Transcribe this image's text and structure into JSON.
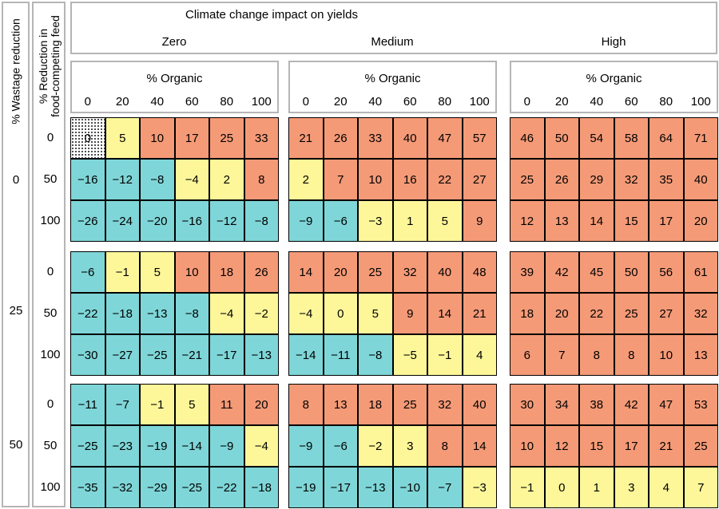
{
  "title": "Climate change impact on yields",
  "wastage_axis_label": "% Wastage reduction",
  "feed_axis_label_line1": "% Reduction in",
  "feed_axis_label_line2": "food-competing feed",
  "organic_label": "% Organic",
  "climate_levels": [
    "Zero",
    "Medium",
    "High"
  ],
  "organic_ticks": [
    "0",
    "20",
    "40",
    "60",
    "80",
    "100"
  ],
  "wastage_levels": [
    "0",
    "25",
    "50"
  ],
  "feed_levels": [
    "0",
    "50",
    "100"
  ],
  "colors": {
    "cyan": "#7fd6d8",
    "yellow": "#fdf79a",
    "orange": "#f59a77"
  },
  "chart_data": {
    "type": "heatmap",
    "title": "Climate change impact on yields",
    "x_label": "% Organic",
    "x": [
      0,
      20,
      40,
      60,
      80,
      100
    ],
    "rows_label": "% Reduction in food-competing feed",
    "row_levels": [
      0,
      50,
      100
    ],
    "outer_rows_label": "% Wastage reduction",
    "outer_row_levels": [
      0,
      25,
      50
    ],
    "columns": [
      "Zero",
      "Medium",
      "High"
    ],
    "values": {
      "0": {
        "Zero": [
          [
            0,
            5,
            10,
            17,
            25,
            33
          ],
          [
            -16,
            -12,
            -8,
            -4,
            2,
            8
          ],
          [
            -26,
            -24,
            -20,
            -16,
            -12,
            -8
          ]
        ],
        "Medium": [
          [
            21,
            26,
            33,
            40,
            47,
            57
          ],
          [
            2,
            7,
            10,
            16,
            22,
            27
          ],
          [
            -9,
            -6,
            -3,
            1,
            5,
            9
          ]
        ],
        "High": [
          [
            46,
            50,
            54,
            58,
            64,
            71
          ],
          [
            25,
            26,
            29,
            32,
            35,
            40
          ],
          [
            12,
            13,
            14,
            15,
            17,
            20
          ]
        ]
      },
      "25": {
        "Zero": [
          [
            -6,
            -1,
            5,
            10,
            18,
            26
          ],
          [
            -22,
            -18,
            -13,
            -8,
            -4,
            -2
          ],
          [
            -30,
            -27,
            -25,
            -21,
            -17,
            -13
          ]
        ],
        "Medium": [
          [
            14,
            20,
            25,
            32,
            40,
            48
          ],
          [
            -4,
            0,
            5,
            9,
            14,
            21
          ],
          [
            -14,
            -11,
            -8,
            -5,
            -1,
            4
          ]
        ],
        "High": [
          [
            39,
            42,
            45,
            50,
            56,
            61
          ],
          [
            18,
            20,
            22,
            25,
            27,
            32
          ],
          [
            6,
            7,
            8,
            8,
            10,
            13
          ]
        ]
      },
      "50": {
        "Zero": [
          [
            -11,
            -7,
            -1,
            5,
            11,
            20
          ],
          [
            -25,
            -23,
            -19,
            -14,
            -9,
            -4
          ],
          [
            -35,
            -32,
            -29,
            -25,
            -22,
            -18
          ]
        ],
        "Medium": [
          [
            8,
            13,
            18,
            25,
            32,
            40
          ],
          [
            -9,
            -6,
            -2,
            3,
            8,
            14
          ],
          [
            -19,
            -17,
            -13,
            -10,
            -7,
            -3
          ]
        ],
        "High": [
          [
            30,
            34,
            38,
            42,
            47,
            53
          ],
          [
            10,
            12,
            15,
            17,
            21,
            25
          ],
          [
            -1,
            0,
            1,
            3,
            4,
            7
          ]
        ]
      }
    },
    "color_classes": {
      "0": {
        "Zero": [
          [
            "dotted",
            "yellow",
            "orange",
            "orange",
            "orange",
            "orange"
          ],
          [
            "cyan",
            "cyan",
            "cyan",
            "yellow",
            "yellow",
            "orange"
          ],
          [
            "cyan",
            "cyan",
            "cyan",
            "cyan",
            "cyan",
            "cyan"
          ]
        ],
        "Medium": [
          [
            "orange",
            "orange",
            "orange",
            "orange",
            "orange",
            "orange"
          ],
          [
            "yellow",
            "orange",
            "orange",
            "orange",
            "orange",
            "orange"
          ],
          [
            "cyan",
            "cyan",
            "yellow",
            "yellow",
            "yellow",
            "orange"
          ]
        ],
        "High": [
          [
            "orange",
            "orange",
            "orange",
            "orange",
            "orange",
            "orange"
          ],
          [
            "orange",
            "orange",
            "orange",
            "orange",
            "orange",
            "orange"
          ],
          [
            "orange",
            "orange",
            "orange",
            "orange",
            "orange",
            "orange"
          ]
        ]
      },
      "25": {
        "Zero": [
          [
            "cyan",
            "yellow",
            "yellow",
            "orange",
            "orange",
            "orange"
          ],
          [
            "cyan",
            "cyan",
            "cyan",
            "cyan",
            "yellow",
            "yellow"
          ],
          [
            "cyan",
            "cyan",
            "cyan",
            "cyan",
            "cyan",
            "cyan"
          ]
        ],
        "Medium": [
          [
            "orange",
            "orange",
            "orange",
            "orange",
            "orange",
            "orange"
          ],
          [
            "yellow",
            "yellow",
            "yellow",
            "orange",
            "orange",
            "orange"
          ],
          [
            "cyan",
            "cyan",
            "cyan",
            "yellow",
            "yellow",
            "yellow"
          ]
        ],
        "High": [
          [
            "orange",
            "orange",
            "orange",
            "orange",
            "orange",
            "orange"
          ],
          [
            "orange",
            "orange",
            "orange",
            "orange",
            "orange",
            "orange"
          ],
          [
            "orange",
            "orange",
            "orange",
            "orange",
            "orange",
            "orange"
          ]
        ]
      },
      "50": {
        "Zero": [
          [
            "cyan",
            "cyan",
            "yellow",
            "yellow",
            "orange",
            "orange"
          ],
          [
            "cyan",
            "cyan",
            "cyan",
            "cyan",
            "cyan",
            "yellow"
          ],
          [
            "cyan",
            "cyan",
            "cyan",
            "cyan",
            "cyan",
            "cyan"
          ]
        ],
        "Medium": [
          [
            "orange",
            "orange",
            "orange",
            "orange",
            "orange",
            "orange"
          ],
          [
            "cyan",
            "cyan",
            "yellow",
            "yellow",
            "orange",
            "orange"
          ],
          [
            "cyan",
            "cyan",
            "cyan",
            "cyan",
            "cyan",
            "yellow"
          ]
        ],
        "High": [
          [
            "orange",
            "orange",
            "orange",
            "orange",
            "orange",
            "orange"
          ],
          [
            "orange",
            "orange",
            "orange",
            "orange",
            "orange",
            "orange"
          ],
          [
            "yellow",
            "yellow",
            "yellow",
            "yellow",
            "yellow",
            "yellow"
          ]
        ]
      }
    }
  }
}
